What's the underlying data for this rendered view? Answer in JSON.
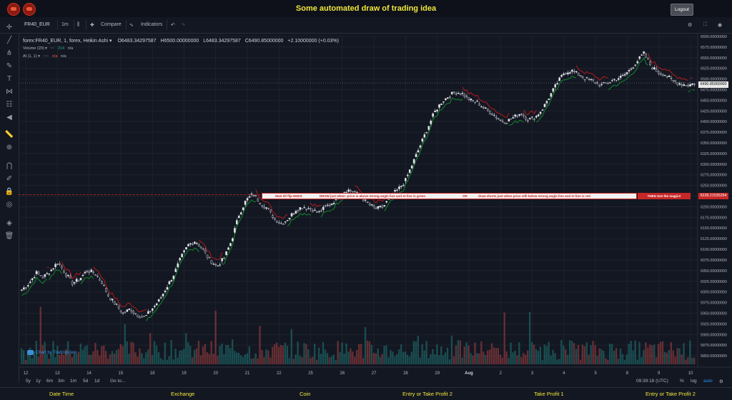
{
  "page_title": "Some automated draw of trading idea",
  "logout_label": "Logout",
  "toolbar": {
    "symbol": "FR40_EUR",
    "interval": "1m",
    "compare_label": "Compare",
    "indicators_label": "Indicators"
  },
  "legend": {
    "main": "forex:FR40_EUR, 1, forex, Heikin Ashi ▾",
    "o": "O6483.34297587",
    "h": "H6500.00000000",
    "l": "L6483.34297587",
    "c": "C6490.85000000",
    "change": "+2.10000000 (+0.03%)",
    "volume_label": "Volume (20) ▾",
    "volume_value": "214",
    "volume_na": "n/a",
    "ai_label": "AI (1, 1) ▾",
    "ai_na1": "n/a",
    "ai_na2": "n/a"
  },
  "annotation": {
    "text1": "Wait till flip ENDS",
    "text2": "DRAW just when: price is above strong angle line and AI line is green",
    "text3": "OR",
    "text4": "draw shorts just when price still below strong angle line and AI line is red",
    "text5": "THEN See the magic!!"
  },
  "current_price_label": "6490.85000000",
  "annotation_price_label": "6228.21535294",
  "watermark": "Chart by TradingView",
  "range_buttons": [
    "5y",
    "1y",
    "6m",
    "3m",
    "1m",
    "5d",
    "1d"
  ],
  "goto_label": "Go to...",
  "clock": "09:39:18 (UTC)",
  "scale_options": [
    "%",
    "log",
    "auto"
  ],
  "footer_items": [
    "Date Time",
    "Exchange",
    "Coin",
    "Entry or Take Profit 2",
    "Take Profit 1",
    "Entry or Take Profit 2"
  ],
  "colors": {
    "background": "#131722",
    "up": "#26a69a",
    "down": "#ef5350",
    "ai_green": "#0f8a2a",
    "ai_red": "#b71c1c",
    "title_yellow": "#f0e63a"
  },
  "chart_data": {
    "type": "candlestick",
    "chart_style": "Heikin Ashi",
    "ylim": [
      5830,
      6600
    ],
    "y_ticks": [
      5850,
      5875,
      5900,
      5925,
      5950,
      5975,
      6000,
      6025,
      6050,
      6075,
      6100,
      6125,
      6150,
      6175,
      6200,
      6225,
      6250,
      6275,
      6300,
      6325,
      6350,
      6375,
      6400,
      6425,
      6450,
      6475,
      6500,
      6525,
      6550,
      6575,
      6600
    ],
    "y_tick_decimals": 8,
    "x_labels": [
      "12",
      "13",
      "14",
      "15",
      "18",
      "19",
      "20",
      "21",
      "22",
      "25",
      "26",
      "27",
      "28",
      "29",
      "Aug",
      "2",
      "3",
      "4",
      "5",
      "8",
      "9",
      "10"
    ],
    "price_path": [
      6005,
      6020,
      6045,
      6035,
      6050,
      6070,
      6045,
      6020,
      6030,
      6050,
      6045,
      6025,
      5990,
      5970,
      5950,
      5960,
      5945,
      5940,
      5960,
      5980,
      6010,
      6040,
      6080,
      6110,
      6120,
      6100,
      6075,
      6060,
      6080,
      6120,
      6180,
      6215,
      6230,
      6210,
      6195,
      6170,
      6160,
      6175,
      6195,
      6200,
      6195,
      6185,
      6200,
      6210,
      6230,
      6240,
      6235,
      6220,
      6205,
      6195,
      6200,
      6225,
      6240,
      6260,
      6300,
      6340,
      6380,
      6420,
      6445,
      6460,
      6470,
      6465,
      6450,
      6445,
      6430,
      6420,
      6405,
      6400,
      6410,
      6420,
      6405,
      6410,
      6430,
      6460,
      6490,
      6515,
      6520,
      6510,
      6500,
      6495,
      6485,
      6490,
      6500,
      6505,
      6520,
      6540,
      6560,
      6530,
      6515,
      6510,
      6495,
      6490,
      6485,
      6490
    ],
    "ai_line": "green below price when rising, red above price when falling",
    "horizontal_line": 6228.21535294,
    "current_price": 6490.85,
    "volume_series": "Volume (20)"
  }
}
